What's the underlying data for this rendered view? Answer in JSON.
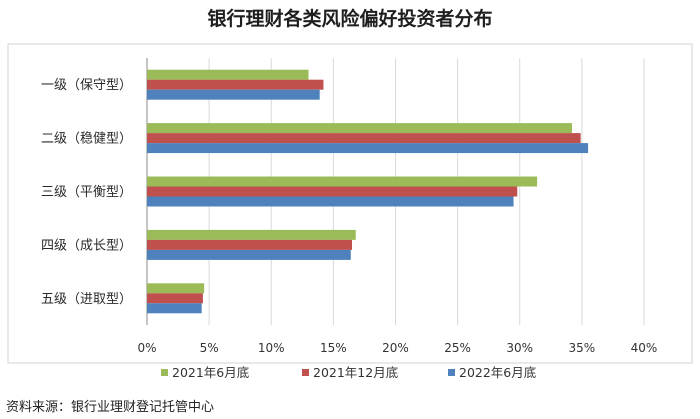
{
  "chart_data": {
    "type": "bar",
    "orientation": "horizontal",
    "title": "银行理财各类风险偏好投资者分布",
    "categories": [
      "一级（保守型）",
      "二级（稳健型）",
      "三级（平衡型）",
      "四级（成长型）",
      "五级（进取型）"
    ],
    "series": [
      {
        "name": "2021年6月底",
        "color": "#9bbb59",
        "values": [
          13.0,
          34.2,
          31.4,
          16.8,
          4.6
        ]
      },
      {
        "name": "2021年12月底",
        "color": "#c0504d",
        "values": [
          14.2,
          34.9,
          29.8,
          16.5,
          4.5
        ]
      },
      {
        "name": "2022年6月底",
        "color": "#4f81bd",
        "values": [
          13.9,
          35.5,
          29.5,
          16.4,
          4.4
        ]
      }
    ],
    "xlim": [
      0,
      40
    ],
    "xticks": [
      "0%",
      "5%",
      "10%",
      "15%",
      "20%",
      "25%",
      "30%",
      "35%",
      "40%"
    ],
    "grid": true,
    "legend_position": "bottom"
  },
  "source_note": "资料来源：银行业理财登记托管中心"
}
